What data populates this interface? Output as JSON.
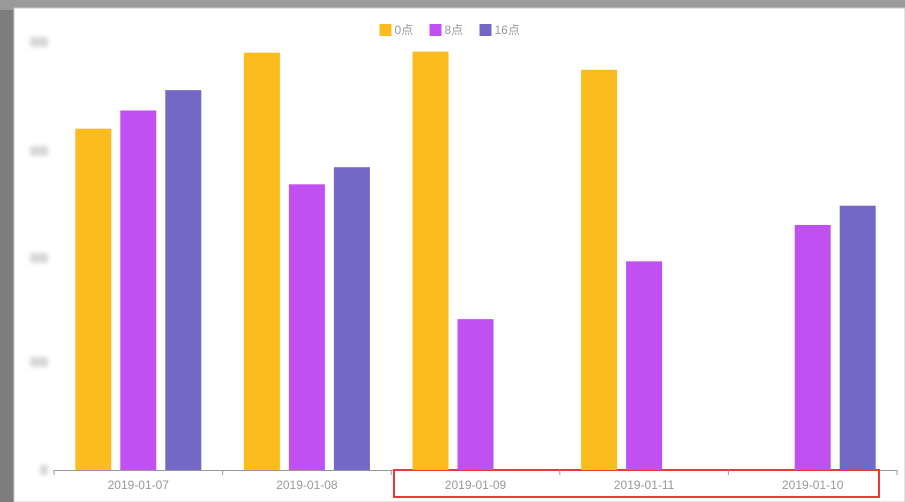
{
  "chart_data": {
    "type": "bar",
    "categories": [
      "2019-01-07",
      "2019-01-08",
      "2019-01-09",
      "2019-01-11",
      "2019-01-10"
    ],
    "series": [
      {
        "name": "0点",
        "color": "#fdbc1d",
        "values": [
          319,
          390,
          391,
          374,
          null
        ]
      },
      {
        "name": "8点",
        "color": "#c050f2",
        "values": [
          336,
          267,
          141,
          195,
          229
        ]
      },
      {
        "name": "16点",
        "color": "#7468c6",
        "values": [
          355,
          283,
          null,
          null,
          247
        ]
      }
    ],
    "ylim": [
      0,
      400
    ],
    "legend": "top"
  }
}
